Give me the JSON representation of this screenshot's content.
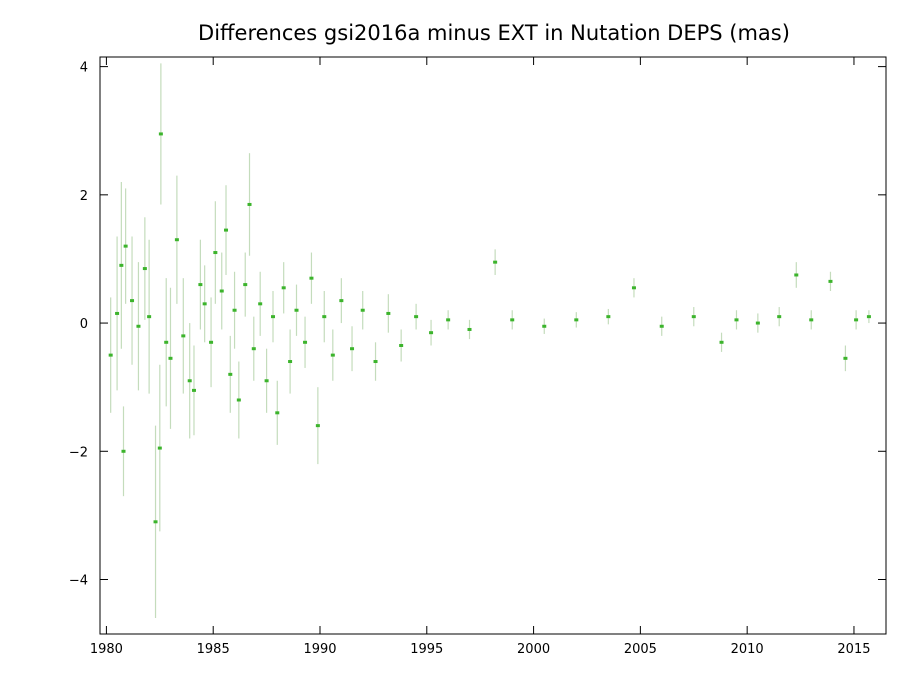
{
  "chart_data": {
    "type": "scatter",
    "title": "Differences gsi2016a minus EXT in Nutation DEPS (mas)",
    "xlabel": "",
    "ylabel": "",
    "xlim": [
      1979.7,
      2016.5
    ],
    "ylim": [
      -4.85,
      4.15
    ],
    "x_ticks": [
      1980,
      1985,
      1990,
      1995,
      2000,
      2005,
      2010,
      2015
    ],
    "y_ticks": [
      -4,
      -2,
      0,
      2,
      4
    ],
    "x_tick_labels": [
      "1980",
      "1985",
      "1990",
      "1995",
      "2000",
      "2005",
      "2010",
      "2015"
    ],
    "y_tick_labels": [
      "−4",
      "−2",
      "0",
      "2",
      "4"
    ],
    "grid": false,
    "legend": "none",
    "colors": {
      "points": "#3cb42c",
      "error_bars": "#c4dcbc"
    },
    "series": [
      {
        "values_with_error": "x=year, y=difference (mas), e=error bar half-width (mas)",
        "points": [
          {
            "x": 1980.2,
            "y": -0.5,
            "e": 0.9
          },
          {
            "x": 1980.5,
            "y": 0.15,
            "e": 1.2
          },
          {
            "x": 1980.7,
            "y": 0.9,
            "e": 1.3
          },
          {
            "x": 1980.8,
            "y": -2.0,
            "e": 0.7
          },
          {
            "x": 1980.9,
            "y": 1.2,
            "e": 0.9
          },
          {
            "x": 1981.2,
            "y": 0.35,
            "e": 1.0
          },
          {
            "x": 1981.5,
            "y": -0.05,
            "e": 1.0
          },
          {
            "x": 1981.8,
            "y": 0.85,
            "e": 0.8
          },
          {
            "x": 1982.0,
            "y": 0.1,
            "e": 1.2
          },
          {
            "x": 1982.3,
            "y": -3.1,
            "e": 1.5
          },
          {
            "x": 1982.5,
            "y": -1.95,
            "e": 1.3
          },
          {
            "x": 1982.55,
            "y": 2.95,
            "e": 1.1
          },
          {
            "x": 1982.8,
            "y": -0.3,
            "e": 1.0
          },
          {
            "x": 1983.0,
            "y": -0.55,
            "e": 1.1
          },
          {
            "x": 1983.3,
            "y": 1.3,
            "e": 1.0
          },
          {
            "x": 1983.6,
            "y": -0.2,
            "e": 0.9
          },
          {
            "x": 1983.9,
            "y": -0.9,
            "e": 0.9
          },
          {
            "x": 1984.1,
            "y": -1.05,
            "e": 0.7
          },
          {
            "x": 1984.4,
            "y": 0.6,
            "e": 0.7
          },
          {
            "x": 1984.6,
            "y": 0.3,
            "e": 0.6
          },
          {
            "x": 1984.9,
            "y": -0.3,
            "e": 0.7
          },
          {
            "x": 1985.1,
            "y": 1.1,
            "e": 0.8
          },
          {
            "x": 1985.4,
            "y": 0.5,
            "e": 0.6
          },
          {
            "x": 1985.6,
            "y": 1.45,
            "e": 0.7
          },
          {
            "x": 1985.8,
            "y": -0.8,
            "e": 0.6
          },
          {
            "x": 1986.0,
            "y": 0.2,
            "e": 0.6
          },
          {
            "x": 1986.2,
            "y": -1.2,
            "e": 0.6
          },
          {
            "x": 1986.5,
            "y": 0.6,
            "e": 0.5
          },
          {
            "x": 1986.7,
            "y": 1.85,
            "e": 0.8
          },
          {
            "x": 1986.9,
            "y": -0.4,
            "e": 0.5
          },
          {
            "x": 1987.2,
            "y": 0.3,
            "e": 0.5
          },
          {
            "x": 1987.5,
            "y": -0.9,
            "e": 0.5
          },
          {
            "x": 1987.8,
            "y": 0.1,
            "e": 0.4
          },
          {
            "x": 1988.0,
            "y": -1.4,
            "e": 0.5
          },
          {
            "x": 1988.3,
            "y": 0.55,
            "e": 0.4
          },
          {
            "x": 1988.6,
            "y": -0.6,
            "e": 0.5
          },
          {
            "x": 1988.9,
            "y": 0.2,
            "e": 0.4
          },
          {
            "x": 1989.3,
            "y": -0.3,
            "e": 0.4
          },
          {
            "x": 1989.6,
            "y": 0.7,
            "e": 0.4
          },
          {
            "x": 1989.9,
            "y": -1.6,
            "e": 0.6
          },
          {
            "x": 1990.2,
            "y": 0.1,
            "e": 0.4
          },
          {
            "x": 1990.6,
            "y": -0.5,
            "e": 0.4
          },
          {
            "x": 1991.0,
            "y": 0.35,
            "e": 0.35
          },
          {
            "x": 1991.5,
            "y": -0.4,
            "e": 0.35
          },
          {
            "x": 1992.0,
            "y": 0.2,
            "e": 0.3
          },
          {
            "x": 1992.6,
            "y": -0.6,
            "e": 0.3
          },
          {
            "x": 1993.2,
            "y": 0.15,
            "e": 0.3
          },
          {
            "x": 1993.8,
            "y": -0.35,
            "e": 0.25
          },
          {
            "x": 1994.5,
            "y": 0.1,
            "e": 0.2
          },
          {
            "x": 1995.2,
            "y": -0.15,
            "e": 0.2
          },
          {
            "x": 1996.0,
            "y": 0.05,
            "e": 0.15
          },
          {
            "x": 1997.0,
            "y": -0.1,
            "e": 0.15
          },
          {
            "x": 1998.2,
            "y": 0.95,
            "e": 0.2
          },
          {
            "x": 1999.0,
            "y": 0.05,
            "e": 0.15
          },
          {
            "x": 2000.5,
            "y": -0.05,
            "e": 0.12
          },
          {
            "x": 2002.0,
            "y": 0.05,
            "e": 0.12
          },
          {
            "x": 2003.5,
            "y": 0.1,
            "e": 0.12
          },
          {
            "x": 2004.7,
            "y": 0.55,
            "e": 0.15
          },
          {
            "x": 2006.0,
            "y": -0.05,
            "e": 0.15
          },
          {
            "x": 2007.5,
            "y": 0.1,
            "e": 0.15
          },
          {
            "x": 2008.8,
            "y": -0.3,
            "e": 0.15
          },
          {
            "x": 2009.5,
            "y": 0.05,
            "e": 0.15
          },
          {
            "x": 2010.5,
            "y": 0.0,
            "e": 0.15
          },
          {
            "x": 2011.5,
            "y": 0.1,
            "e": 0.15
          },
          {
            "x": 2012.3,
            "y": 0.75,
            "e": 0.2
          },
          {
            "x": 2013.0,
            "y": 0.05,
            "e": 0.15
          },
          {
            "x": 2013.9,
            "y": 0.65,
            "e": 0.15
          },
          {
            "x": 2014.6,
            "y": -0.55,
            "e": 0.2
          },
          {
            "x": 2015.1,
            "y": 0.05,
            "e": 0.15
          },
          {
            "x": 2015.7,
            "y": 0.1,
            "e": 0.1
          }
        ]
      }
    ]
  }
}
